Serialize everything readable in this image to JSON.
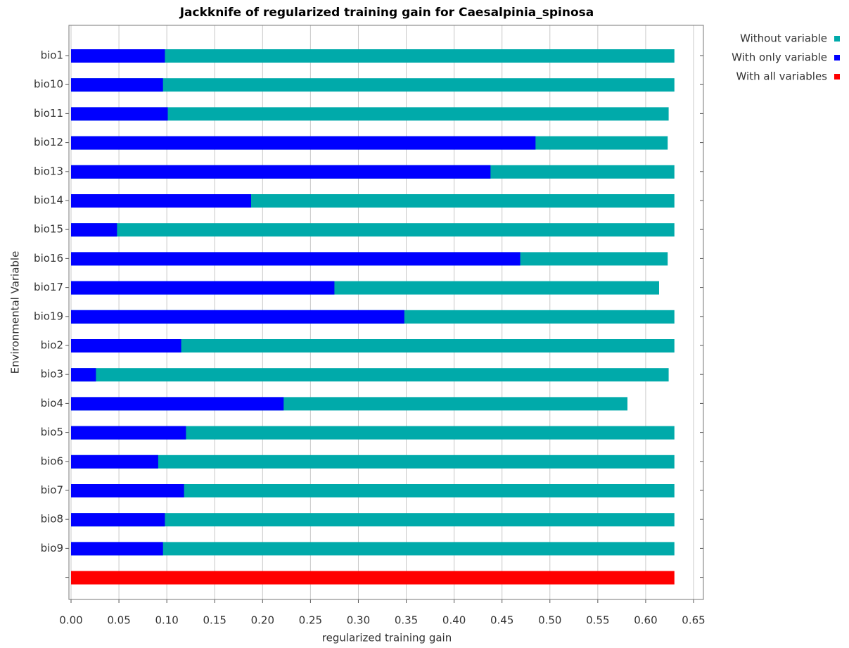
{
  "chart_data": {
    "type": "bar",
    "orientation": "horizontal",
    "title": "Jackknife of regularized training gain for Caesalpinia_spinosa",
    "x_label": "regularized training gain",
    "y_label": "Environmental Variable",
    "categories": [
      "bio1",
      "bio10",
      "bio11",
      "bio12",
      "bio13",
      "bio14",
      "bio15",
      "bio16",
      "bio17",
      "bio19",
      "bio2",
      "bio3",
      "bio4",
      "bio5",
      "bio6",
      "bio7",
      "bio8",
      "bio9",
      null
    ],
    "series": [
      {
        "name": "Without variable",
        "color": "#00aaaa",
        "values": [
          0.63,
          0.63,
          0.624,
          0.623,
          0.63,
          0.63,
          0.63,
          0.623,
          0.614,
          0.63,
          0.63,
          0.624,
          0.581,
          0.63,
          0.63,
          0.63,
          0.63,
          0.63,
          null
        ]
      },
      {
        "name": "With only variable",
        "color": "#0000ff",
        "values": [
          0.098,
          0.096,
          0.101,
          0.485,
          0.438,
          0.188,
          0.048,
          0.469,
          0.275,
          0.348,
          0.115,
          0.026,
          0.222,
          0.12,
          0.091,
          0.118,
          0.098,
          0.096,
          null
        ]
      },
      {
        "name": "With all variables",
        "color": "#ff0000",
        "values": [
          null,
          null,
          null,
          null,
          null,
          null,
          null,
          null,
          null,
          null,
          null,
          null,
          null,
          null,
          null,
          null,
          null,
          null,
          0.63
        ]
      }
    ],
    "xlim": [
      0,
      0.65
    ],
    "xticks": [
      {
        "value": 0,
        "label": "0.00"
      },
      {
        "value": 0.05,
        "label": "0.05"
      },
      {
        "value": 0.1,
        "label": "0.10"
      },
      {
        "value": 0.15,
        "label": "0.15"
      },
      {
        "value": 0.2,
        "label": "0.20"
      },
      {
        "value": 0.25,
        "label": "0.25"
      },
      {
        "value": 0.3,
        "label": "0.30"
      },
      {
        "value": 0.35,
        "label": "0.35"
      },
      {
        "value": 0.4,
        "label": "0.40"
      },
      {
        "value": 0.45,
        "label": "0.45"
      },
      {
        "value": 0.5,
        "label": "0.50"
      },
      {
        "value": 0.55,
        "label": "0.55"
      },
      {
        "value": 0.6,
        "label": "0.60"
      },
      {
        "value": 0.65,
        "label": "0.65"
      }
    ],
    "grid": true,
    "legend": "top-right"
  }
}
